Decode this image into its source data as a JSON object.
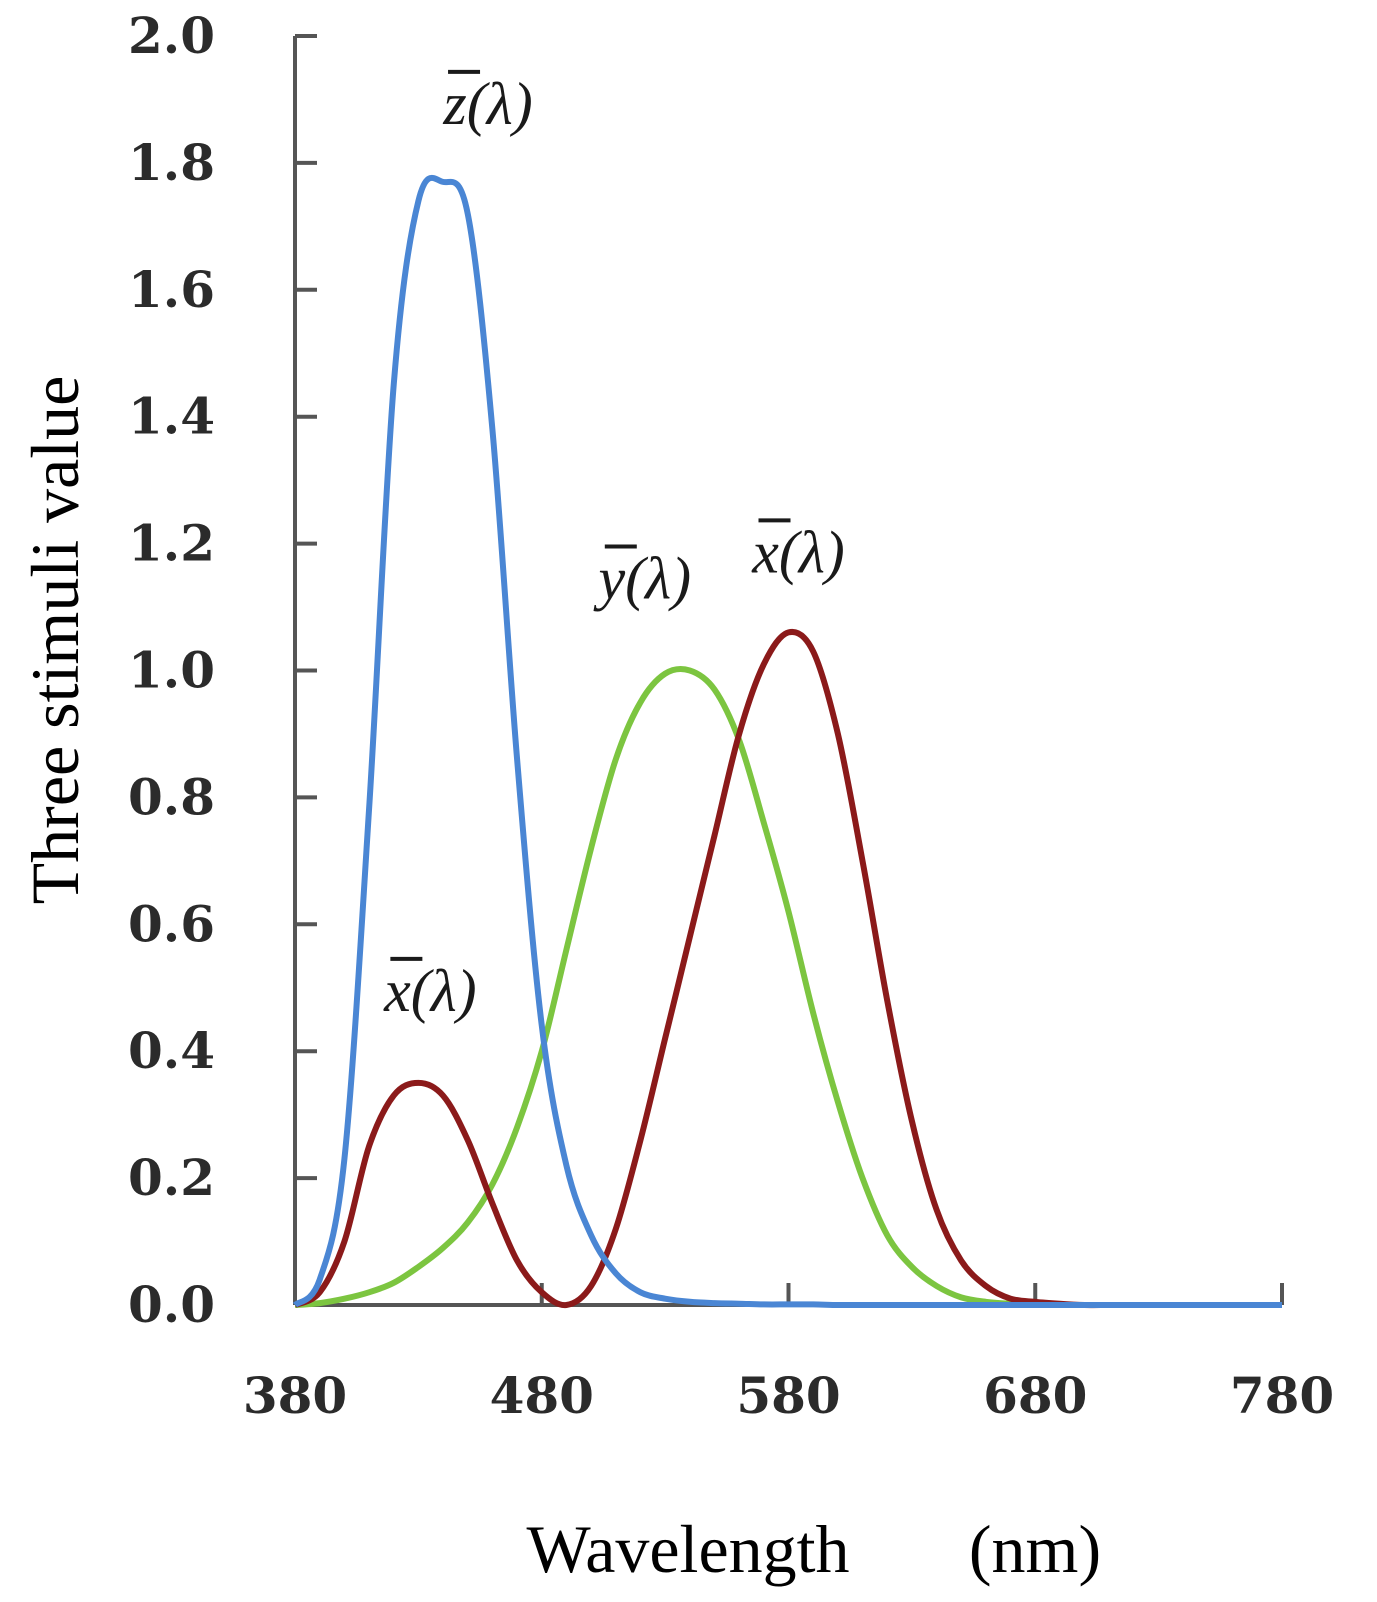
{
  "chart_data": {
    "type": "line",
    "xlabel": "Wavelength",
    "xlabel_unit": "(nm)",
    "ylabel": "Three stimuli value",
    "xlim": [
      380,
      780
    ],
    "ylim": [
      0.0,
      2.0
    ],
    "x_ticks": [
      "380",
      "480",
      "580",
      "680",
      "780"
    ],
    "y_ticks": [
      "0.0",
      "0.2",
      "0.4",
      "0.6",
      "0.8",
      "1.0",
      "1.2",
      "1.4",
      "1.6",
      "1.8",
      "2.0"
    ],
    "grid": false,
    "x": [
      380,
      390,
      400,
      410,
      420,
      430,
      440,
      450,
      460,
      470,
      480,
      490,
      500,
      510,
      520,
      530,
      540,
      550,
      560,
      570,
      580,
      590,
      600,
      610,
      620,
      630,
      640,
      650,
      660,
      670,
      680,
      690,
      700,
      710,
      720,
      730,
      740,
      750,
      760,
      770,
      780
    ],
    "series": [
      {
        "label": "z(λ)",
        "color": "#4a86d4",
        "values": [
          0.0,
          0.04,
          0.23,
          0.78,
          1.45,
          1.74,
          1.77,
          1.72,
          1.38,
          0.86,
          0.44,
          0.22,
          0.11,
          0.05,
          0.02,
          0.01,
          0.005,
          0.003,
          0.002,
          0.001,
          0.001,
          0.001,
          0.0,
          0.0,
          0.0,
          0.0,
          0.0,
          0.0,
          0.0,
          0.0,
          0.0,
          0.0,
          0.0,
          0.0,
          0.0,
          0.0,
          0.0,
          0.0,
          0.0,
          0.0,
          0.0
        ]
      },
      {
        "label": "y(λ)",
        "color": "#7cc540",
        "values": [
          0.0,
          0.003,
          0.01,
          0.02,
          0.035,
          0.06,
          0.09,
          0.13,
          0.19,
          0.28,
          0.4,
          0.56,
          0.72,
          0.86,
          0.95,
          0.995,
          1.0,
          0.97,
          0.89,
          0.76,
          0.62,
          0.46,
          0.32,
          0.2,
          0.11,
          0.06,
          0.03,
          0.012,
          0.005,
          0.002,
          0.001,
          0.0,
          0.0,
          0.0,
          0.0,
          0.0,
          0.0,
          0.0,
          0.0,
          0.0,
          0.0
        ]
      },
      {
        "label": "x(λ)",
        "color": "#8b1a1a",
        "values": [
          0.0,
          0.02,
          0.1,
          0.25,
          0.33,
          0.35,
          0.33,
          0.26,
          0.16,
          0.07,
          0.02,
          0.0,
          0.03,
          0.12,
          0.26,
          0.42,
          0.58,
          0.74,
          0.9,
          1.01,
          1.06,
          1.03,
          0.9,
          0.7,
          0.48,
          0.29,
          0.15,
          0.07,
          0.03,
          0.01,
          0.005,
          0.002,
          0.0,
          0.0,
          0.0,
          0.0,
          0.0,
          0.0,
          0.0,
          0.0,
          0.0
        ]
      }
    ],
    "annotations": [
      {
        "text": "z(λ)",
        "series": "z(λ)"
      },
      {
        "text": "y(λ)",
        "series": "y(λ)"
      },
      {
        "text": "x(λ)",
        "series": "x(λ) main peak"
      },
      {
        "text": "x(λ)",
        "series": "x(λ) short-wave lobe"
      }
    ]
  }
}
